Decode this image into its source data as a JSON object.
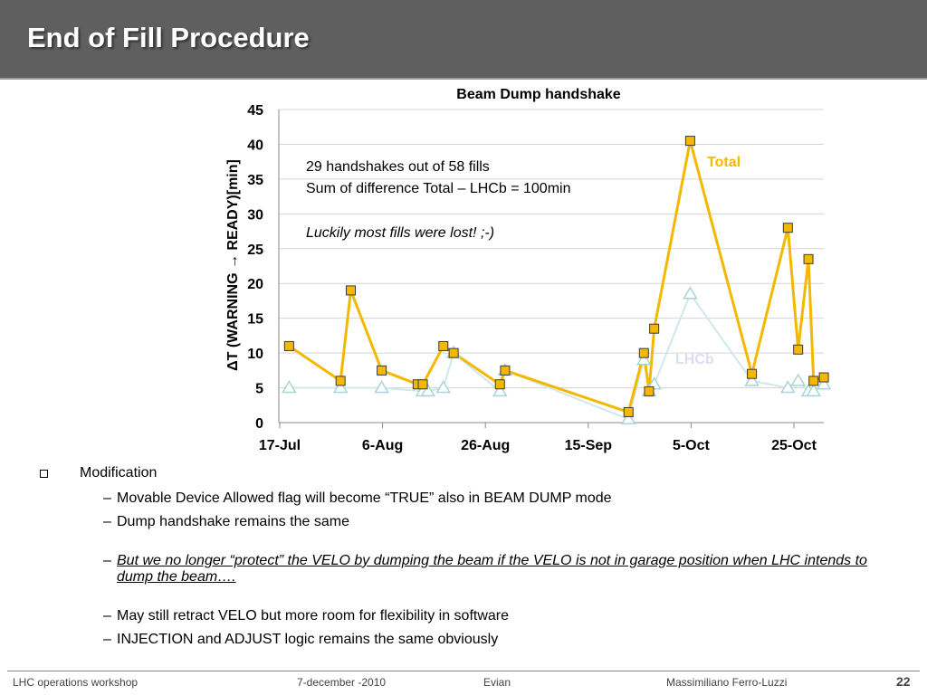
{
  "slide": {
    "title": "End of Fill Procedure",
    "page_number": "22"
  },
  "chart_data": {
    "type": "line",
    "title": "Beam Dump  handshake",
    "ylabel": "ΔT (WARNING → READY)[min]",
    "xlabel": "",
    "ylim": [
      0,
      45
    ],
    "yticks": [
      0,
      5,
      10,
      15,
      20,
      25,
      30,
      35,
      40,
      45
    ],
    "xlim": [
      0,
      104
    ],
    "xticks": [
      {
        "label": "17-Jul",
        "x": 0
      },
      {
        "label": "6-Aug",
        "x": 20
      },
      {
        "label": "26-Aug",
        "x": 40
      },
      {
        "label": "15-Sep",
        "x": 60
      },
      {
        "label": "5-Oct",
        "x": 80
      },
      {
        "label": "25-Oct",
        "x": 100
      }
    ],
    "grid": true,
    "series": [
      {
        "name": "Total",
        "color": "#f5b800",
        "marker": "square",
        "points": [
          [
            2,
            11
          ],
          [
            12,
            6
          ],
          [
            14,
            19
          ],
          [
            20,
            7.5
          ],
          [
            27,
            5.5
          ],
          [
            28,
            5.5
          ],
          [
            32,
            11
          ],
          [
            34,
            10
          ],
          [
            43,
            5.5
          ],
          [
            44,
            7.5
          ],
          [
            68,
            1.5
          ],
          [
            71,
            10
          ],
          [
            72,
            4.5
          ],
          [
            73,
            13.5
          ],
          [
            80,
            40.5
          ],
          [
            92,
            7
          ],
          [
            99,
            28
          ],
          [
            101,
            10.5
          ],
          [
            103,
            23.5
          ],
          [
            104,
            6
          ],
          [
            106,
            6.5
          ]
        ]
      },
      {
        "name": "LHCb",
        "color": "#cfe8ea",
        "marker": "triangle",
        "points": [
          [
            2,
            5
          ],
          [
            12,
            5
          ],
          [
            20,
            5
          ],
          [
            28,
            4.5
          ],
          [
            29,
            4.5
          ],
          [
            32,
            5
          ],
          [
            34,
            10
          ],
          [
            43,
            4.5
          ],
          [
            44,
            7.5
          ],
          [
            68,
            0.5
          ],
          [
            71,
            9
          ],
          [
            72,
            4.5
          ],
          [
            73,
            5.5
          ],
          [
            80,
            18.5
          ],
          [
            92,
            6
          ],
          [
            99,
            5
          ],
          [
            101,
            6
          ],
          [
            103,
            4.5
          ],
          [
            104,
            4.5
          ],
          [
            106,
            5.5
          ]
        ]
      }
    ],
    "annotations": {
      "line1": "29 handshakes out of 58 fills",
      "line2": "Sum of difference Total – LHCb = 100min",
      "line3": "Luckily most fills were lost! ;-)",
      "total_label": "Total",
      "lhcb_label": "LHCb"
    }
  },
  "bullets": {
    "main": "Modification",
    "sub1": "Movable Device Allowed flag will become “TRUE” also in BEAM DUMP mode",
    "sub2": "Dump handshake remains the same",
    "sub3": "But we no longer “protect” the VELO by dumping the beam if the VELO is not in garage position when LHC intends to dump the beam….",
    "sub4": "May still retract VELO but more room for flexibility in software",
    "sub5": "INJECTION and ADJUST logic remains the same obviously",
    "dash": "–"
  },
  "footer": {
    "workshop": "LHC operations workshop",
    "date": "7-december -2010",
    "place": "Evian",
    "author": "Massimiliano Ferro-Luzzi"
  }
}
